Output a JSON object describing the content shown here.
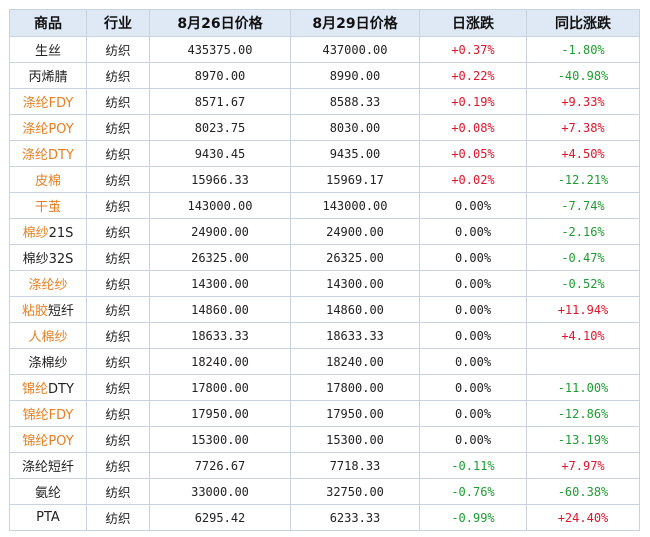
{
  "columns": [
    "商品",
    "行业",
    "8月26日价格",
    "8月29日价格",
    "日涨跌",
    "同比涨跌"
  ],
  "rows": [
    {
      "name": [
        {
          "text": "生丝",
          "link": false
        }
      ],
      "industry": "纺织",
      "p1": "435375.00",
      "p2": "437000.00",
      "day": "+0.37%",
      "dayc": "up",
      "yoy": "-1.80%",
      "yoyc": "down"
    },
    {
      "name": [
        {
          "text": "丙烯腈",
          "link": false
        }
      ],
      "industry": "纺织",
      "p1": "8970.00",
      "p2": "8990.00",
      "day": "+0.22%",
      "dayc": "up",
      "yoy": "-40.98%",
      "yoyc": "down"
    },
    {
      "name": [
        {
          "text": "涤纶FDY",
          "link": true
        }
      ],
      "industry": "纺织",
      "p1": "8571.67",
      "p2": "8588.33",
      "day": "+0.19%",
      "dayc": "up",
      "yoy": "+9.33%",
      "yoyc": "up"
    },
    {
      "name": [
        {
          "text": "涤纶POY",
          "link": true
        }
      ],
      "industry": "纺织",
      "p1": "8023.75",
      "p2": "8030.00",
      "day": "+0.08%",
      "dayc": "up",
      "yoy": "+7.38%",
      "yoyc": "up"
    },
    {
      "name": [
        {
          "text": "涤纶DTY",
          "link": true
        }
      ],
      "industry": "纺织",
      "p1": "9430.45",
      "p2": "9435.00",
      "day": "+0.05%",
      "dayc": "up",
      "yoy": "+4.50%",
      "yoyc": "up"
    },
    {
      "name": [
        {
          "text": "皮棉",
          "link": true
        }
      ],
      "industry": "纺织",
      "p1": "15966.33",
      "p2": "15969.17",
      "day": "+0.02%",
      "dayc": "up",
      "yoy": "-12.21%",
      "yoyc": "down"
    },
    {
      "name": [
        {
          "text": "干茧",
          "link": true
        }
      ],
      "industry": "纺织",
      "p1": "143000.00",
      "p2": "143000.00",
      "day": "0.00%",
      "dayc": "flat",
      "yoy": "-7.74%",
      "yoyc": "down"
    },
    {
      "name": [
        {
          "text": "棉纱",
          "link": true
        },
        {
          "text": "21S",
          "link": false
        }
      ],
      "industry": "纺织",
      "p1": "24900.00",
      "p2": "24900.00",
      "day": "0.00%",
      "dayc": "flat",
      "yoy": "-2.16%",
      "yoyc": "down"
    },
    {
      "name": [
        {
          "text": "棉纱32S",
          "link": false
        }
      ],
      "industry": "纺织",
      "p1": "26325.00",
      "p2": "26325.00",
      "day": "0.00%",
      "dayc": "flat",
      "yoy": "-0.47%",
      "yoyc": "down"
    },
    {
      "name": [
        {
          "text": "涤纶纱",
          "link": true
        }
      ],
      "industry": "纺织",
      "p1": "14300.00",
      "p2": "14300.00",
      "day": "0.00%",
      "dayc": "flat",
      "yoy": "-0.52%",
      "yoyc": "down"
    },
    {
      "name": [
        {
          "text": "粘胶",
          "link": true
        },
        {
          "text": "短纤",
          "link": false
        }
      ],
      "industry": "纺织",
      "p1": "14860.00",
      "p2": "14860.00",
      "day": "0.00%",
      "dayc": "flat",
      "yoy": "+11.94%",
      "yoyc": "up"
    },
    {
      "name": [
        {
          "text": "人棉纱",
          "link": true
        }
      ],
      "industry": "纺织",
      "p1": "18633.33",
      "p2": "18633.33",
      "day": "0.00%",
      "dayc": "flat",
      "yoy": "+4.10%",
      "yoyc": "up"
    },
    {
      "name": [
        {
          "text": "涤棉纱",
          "link": false
        }
      ],
      "industry": "纺织",
      "p1": "18240.00",
      "p2": "18240.00",
      "day": "0.00%",
      "dayc": "flat",
      "yoy": "",
      "yoyc": "flat"
    },
    {
      "name": [
        {
          "text": "锦纶",
          "link": true
        },
        {
          "text": "DTY",
          "link": false
        }
      ],
      "industry": "纺织",
      "p1": "17800.00",
      "p2": "17800.00",
      "day": "0.00%",
      "dayc": "flat",
      "yoy": "-11.00%",
      "yoyc": "down"
    },
    {
      "name": [
        {
          "text": "锦纶FDY",
          "link": true
        }
      ],
      "industry": "纺织",
      "p1": "17950.00",
      "p2": "17950.00",
      "day": "0.00%",
      "dayc": "flat",
      "yoy": "-12.86%",
      "yoyc": "down"
    },
    {
      "name": [
        {
          "text": "锦纶POY",
          "link": true
        }
      ],
      "industry": "纺织",
      "p1": "15300.00",
      "p2": "15300.00",
      "day": "0.00%",
      "dayc": "flat",
      "yoy": "-13.19%",
      "yoyc": "down"
    },
    {
      "name": [
        {
          "text": "涤纶短纤",
          "link": false
        }
      ],
      "industry": "纺织",
      "p1": "7726.67",
      "p2": "7718.33",
      "day": "-0.11%",
      "dayc": "down",
      "yoy": "+7.97%",
      "yoyc": "up"
    },
    {
      "name": [
        {
          "text": "氨纶",
          "link": false
        }
      ],
      "industry": "纺织",
      "p1": "33000.00",
      "p2": "32750.00",
      "day": "-0.76%",
      "dayc": "down",
      "yoy": "-60.38%",
      "yoyc": "down"
    },
    {
      "name": [
        {
          "text": "PTA",
          "link": false
        }
      ],
      "industry": "纺织",
      "p1": "6295.42",
      "p2": "6233.33",
      "day": "-0.99%",
      "dayc": "down",
      "yoy": "+24.40%",
      "yoyc": "up"
    }
  ],
  "colors": {
    "up": "#e1152b",
    "down": "#1e9c32",
    "link": "#e67f22",
    "header_bg": "#dfe8f5",
    "border": "#c9d3e0"
  }
}
